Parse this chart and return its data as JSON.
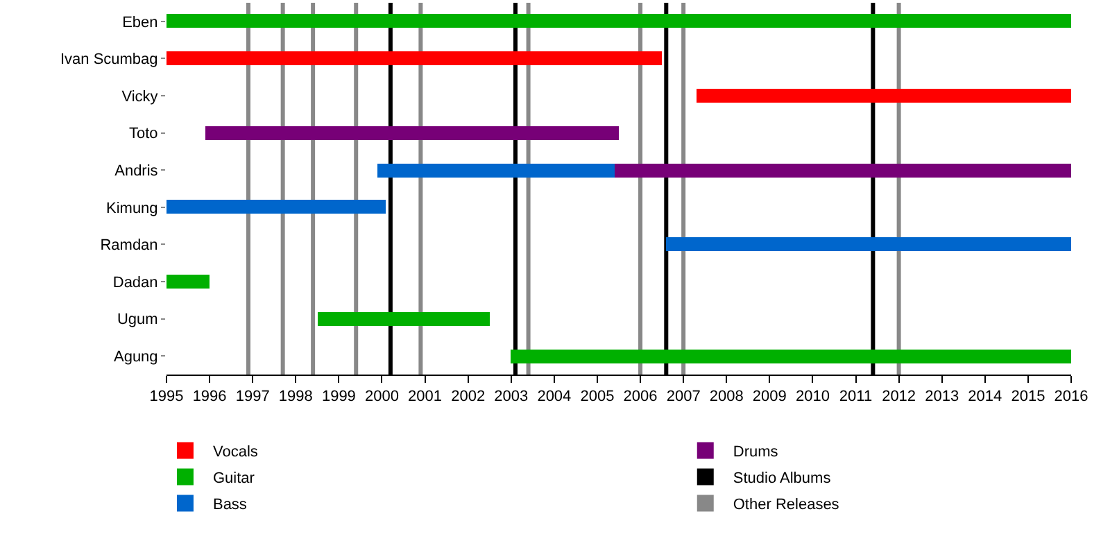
{
  "chart_data": {
    "type": "bar",
    "orientation": "horizontal",
    "categories": [
      "Eben",
      "Ivan Scumbag",
      "Vicky",
      "Toto",
      "Andris",
      "Kimung",
      "Ramdan",
      "Dadan",
      "Ugum",
      "Agung"
    ],
    "series": [
      {
        "name": "Vocals",
        "color": "#ff0000",
        "base": [
          null,
          1995,
          2007.3,
          null,
          null,
          null,
          null,
          null,
          null,
          null
        ],
        "values": [
          null,
          11.5,
          8.7,
          null,
          null,
          null,
          null,
          null,
          null,
          null
        ]
      },
      {
        "name": "Guitar",
        "color": "#00b000",
        "base": [
          1995,
          null,
          null,
          null,
          null,
          null,
          null,
          1995,
          1998.5,
          2003.0
        ],
        "values": [
          21,
          null,
          null,
          null,
          null,
          null,
          null,
          1.0,
          4.0,
          13.0
        ]
      },
      {
        "name": "Bass",
        "color": "#0066cc",
        "base": [
          null,
          null,
          null,
          null,
          1999.9,
          1995,
          2006.6,
          null,
          null,
          null
        ],
        "values": [
          null,
          null,
          null,
          null,
          5.5,
          5.1,
          9.4,
          null,
          null,
          null
        ]
      },
      {
        "name": "Drums",
        "color": "#770077",
        "base": [
          null,
          null,
          null,
          1995.9,
          2005.4,
          null,
          null,
          null,
          null,
          null
        ],
        "values": [
          null,
          null,
          null,
          9.6,
          10.6,
          null,
          null,
          null,
          null,
          null
        ]
      }
    ],
    "ref_lines": [
      {
        "axis": "x",
        "value": 2000.2,
        "label": "Studio Albums",
        "color": "#000000"
      },
      {
        "axis": "x",
        "value": 2003.1,
        "color": "#000000"
      },
      {
        "axis": "x",
        "value": 2006.6,
        "color": "#000000"
      },
      {
        "axis": "x",
        "value": 2011.4,
        "color": "#000000"
      },
      {
        "axis": "x",
        "value": 1996.9,
        "label": "Other Releases",
        "color": "#888888"
      },
      {
        "axis": "x",
        "value": 1997.7,
        "color": "#888888"
      },
      {
        "axis": "x",
        "value": 1998.4,
        "color": "#888888"
      },
      {
        "axis": "x",
        "value": 1999.4,
        "color": "#888888"
      },
      {
        "axis": "x",
        "value": 2000.9,
        "color": "#888888"
      },
      {
        "axis": "x",
        "value": 2003.4,
        "color": "#888888"
      },
      {
        "axis": "x",
        "value": 2006.0,
        "color": "#888888"
      },
      {
        "axis": "x",
        "value": 2007.0,
        "color": "#888888"
      },
      {
        "axis": "x",
        "value": 2012.0,
        "color": "#888888"
      }
    ],
    "xlim": [
      1995,
      2016
    ],
    "xticks": [
      1995,
      1996,
      1997,
      1998,
      1999,
      2000,
      2001,
      2002,
      2003,
      2004,
      2005,
      2006,
      2007,
      2008,
      2009,
      2010,
      2011,
      2012,
      2013,
      2014,
      2015,
      2016
    ],
    "grid": false,
    "legend": "bottom"
  }
}
